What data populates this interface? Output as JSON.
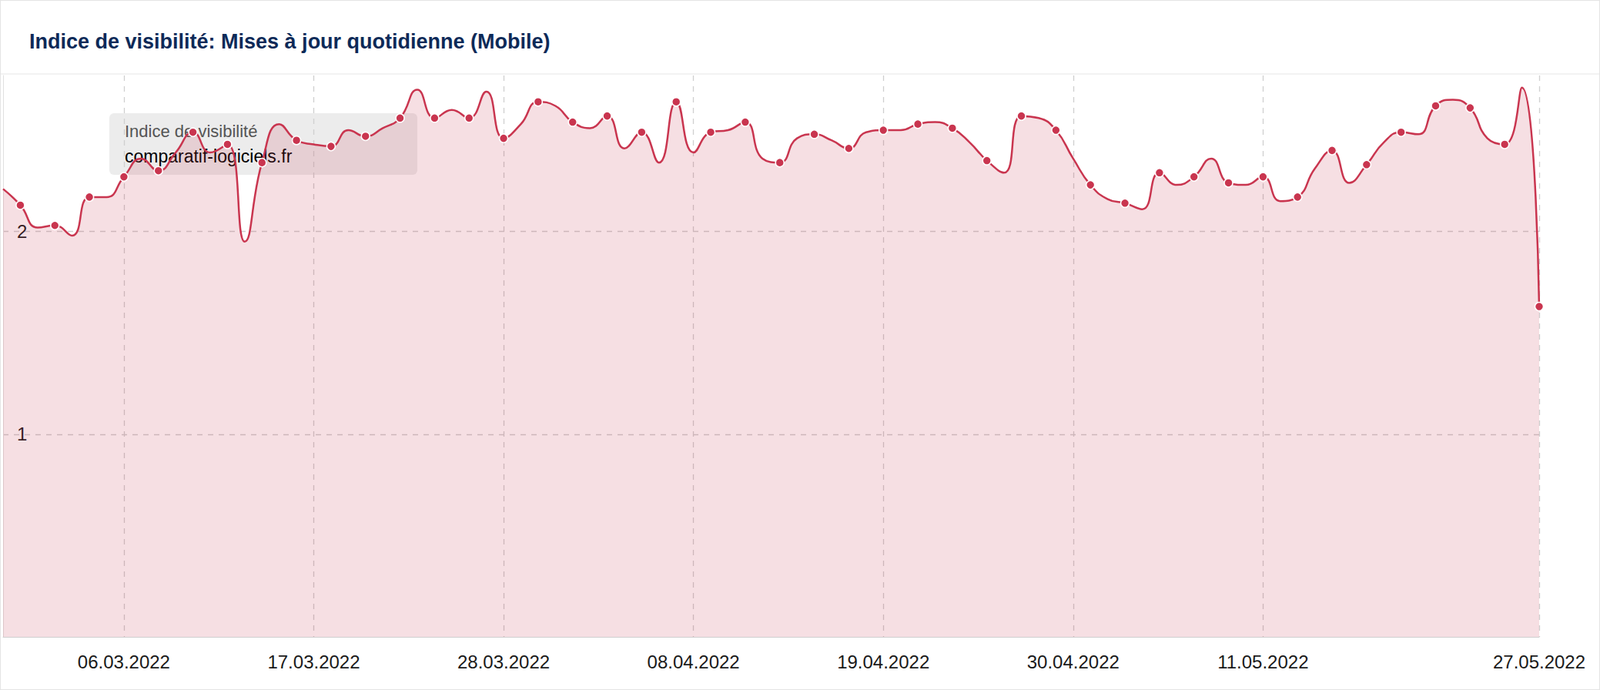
{
  "chart_data": {
    "type": "area",
    "title": "Indice de visibilité: Mises à jour quotidienne (Mobile)",
    "annotation": "Indice de visibilité",
    "categories": [
      null,
      null,
      null,
      null,
      null,
      null,
      null,
      "06.03.2022",
      null,
      null,
      null,
      null,
      null,
      null,
      null,
      null,
      null,
      null,
      "17.03.2022",
      null,
      null,
      null,
      null,
      null,
      null,
      null,
      null,
      null,
      null,
      "28.03.2022",
      null,
      null,
      null,
      null,
      null,
      null,
      null,
      null,
      null,
      null,
      "08.04.2022",
      null,
      null,
      null,
      null,
      null,
      null,
      null,
      null,
      null,
      null,
      "19.04.2022",
      null,
      null,
      null,
      null,
      null,
      null,
      null,
      null,
      null,
      null,
      "30.04.2022",
      null,
      null,
      null,
      null,
      null,
      null,
      null,
      null,
      null,
      null,
      "11.05.2022",
      null,
      null,
      null,
      null,
      null,
      null,
      null,
      null,
      null,
      null,
      null,
      null,
      null,
      null,
      null,
      "27.05.2022"
    ],
    "series": [
      {
        "name": "comparatif-logiciels.fr",
        "color": "#c9354f",
        "marker": "circle",
        "values": [
          2.21,
          2.13,
          2.02,
          2.03,
          1.98,
          2.17,
          2.17,
          2.27,
          2.36,
          2.3,
          2.39,
          2.49,
          2.39,
          2.43,
          1.95,
          2.34,
          2.53,
          2.45,
          2.43,
          2.42,
          2.5,
          2.47,
          2.51,
          2.56,
          2.7,
          2.56,
          2.6,
          2.56,
          2.69,
          2.46,
          2.53,
          2.64,
          2.62,
          2.54,
          2.51,
          2.57,
          2.41,
          2.49,
          2.34,
          2.64,
          2.39,
          2.49,
          2.5,
          2.54,
          2.36,
          2.34,
          2.46,
          2.48,
          2.45,
          2.41,
          2.49,
          2.5,
          2.5,
          2.53,
          2.54,
          2.51,
          2.44,
          2.35,
          2.29,
          2.57,
          2.56,
          2.5,
          2.36,
          2.23,
          2.16,
          2.14,
          2.11,
          2.29,
          2.23,
          2.27,
          2.36,
          2.24,
          2.23,
          2.27,
          2.15,
          2.17,
          2.31,
          2.4,
          2.24,
          2.33,
          2.44,
          2.49,
          2.48,
          2.62,
          2.65,
          2.61,
          2.46,
          2.43,
          2.71,
          1.63
        ]
      }
    ],
    "ylim": [
      0,
      2.77
    ],
    "yticks": [
      1,
      2
    ],
    "grid": true
  }
}
